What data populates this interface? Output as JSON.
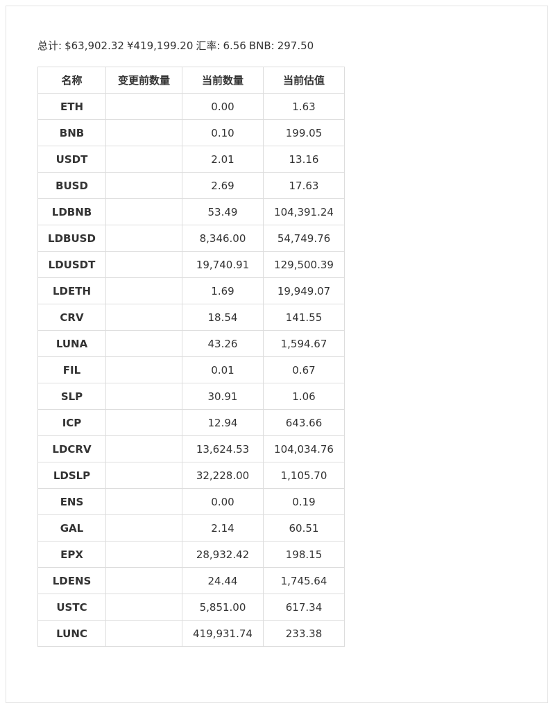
{
  "summary": {
    "total_label": "总计:",
    "usd": "$63,902.32",
    "cny": "¥419,199.20",
    "rate_label": "汇率:",
    "rate": "6.56",
    "bnb_label": "BNB:",
    "bnb": "297.50"
  },
  "table": {
    "headers": [
      "名称",
      "变更前数量",
      "当前数量",
      "当前估值"
    ],
    "rows": [
      {
        "name": "ETH",
        "before": "",
        "qty": "0.00",
        "value": "1.63"
      },
      {
        "name": "BNB",
        "before": "",
        "qty": "0.10",
        "value": "199.05"
      },
      {
        "name": "USDT",
        "before": "",
        "qty": "2.01",
        "value": "13.16"
      },
      {
        "name": "BUSD",
        "before": "",
        "qty": "2.69",
        "value": "17.63"
      },
      {
        "name": "LDBNB",
        "before": "",
        "qty": "53.49",
        "value": "104,391.24"
      },
      {
        "name": "LDBUSD",
        "before": "",
        "qty": "8,346.00",
        "value": "54,749.76"
      },
      {
        "name": "LDUSDT",
        "before": "",
        "qty": "19,740.91",
        "value": "129,500.39"
      },
      {
        "name": "LDETH",
        "before": "",
        "qty": "1.69",
        "value": "19,949.07"
      },
      {
        "name": "CRV",
        "before": "",
        "qty": "18.54",
        "value": "141.55"
      },
      {
        "name": "LUNA",
        "before": "",
        "qty": "43.26",
        "value": "1,594.67"
      },
      {
        "name": "FIL",
        "before": "",
        "qty": "0.01",
        "value": "0.67"
      },
      {
        "name": "SLP",
        "before": "",
        "qty": "30.91",
        "value": "1.06"
      },
      {
        "name": "ICP",
        "before": "",
        "qty": "12.94",
        "value": "643.66"
      },
      {
        "name": "LDCRV",
        "before": "",
        "qty": "13,624.53",
        "value": "104,034.76"
      },
      {
        "name": "LDSLP",
        "before": "",
        "qty": "32,228.00",
        "value": "1,105.70"
      },
      {
        "name": "ENS",
        "before": "",
        "qty": "0.00",
        "value": "0.19"
      },
      {
        "name": "GAL",
        "before": "",
        "qty": "2.14",
        "value": "60.51"
      },
      {
        "name": "EPX",
        "before": "",
        "qty": "28,932.42",
        "value": "198.15"
      },
      {
        "name": "LDENS",
        "before": "",
        "qty": "24.44",
        "value": "1,745.64"
      },
      {
        "name": "USTC",
        "before": "",
        "qty": "5,851.00",
        "value": "617.34"
      },
      {
        "name": "LUNC",
        "before": "",
        "qty": "419,931.74",
        "value": "233.38"
      }
    ]
  }
}
